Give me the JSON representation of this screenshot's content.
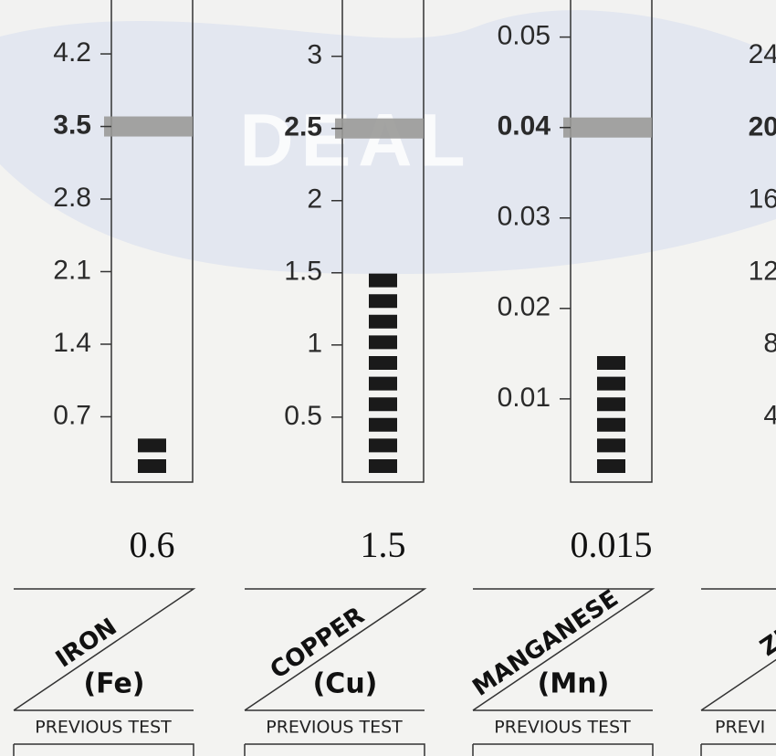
{
  "watermark": "DEAL",
  "chart_data": [
    {
      "type": "gauge",
      "element": "IRON",
      "symbol": "(Fe)",
      "footer": "PREVIOUS TEST",
      "values": [
        0.6
      ],
      "reference": 3.5,
      "color": "#1a1a1a",
      "ylim": [
        0.07,
        4.72
      ],
      "yticks": [
        0.7,
        1.4,
        2.1,
        2.8,
        3.5,
        4.2
      ]
    },
    {
      "type": "gauge",
      "element": "COPPER",
      "symbol": "(Cu)",
      "footer": "PREVIOUS TEST",
      "values": [
        1.5
      ],
      "reference": 2.5,
      "color": "#1a1a1a",
      "ylim": [
        0.05,
        3.39
      ],
      "yticks": [
        0.5,
        1.0,
        1.5,
        2.0,
        2.5,
        3.0
      ]
    },
    {
      "type": "gauge",
      "element": "MANGANESE",
      "symbol": "(Mn)",
      "footer": "PREVIOUS TEST",
      "values": [
        0.015
      ],
      "reference": 0.04,
      "color": "#1a1a1a",
      "ylim": [
        0.0008,
        0.0541
      ],
      "yticks": [
        0.01,
        0.02,
        0.03,
        0.04,
        0.05
      ]
    },
    {
      "type": "gauge",
      "element": "ZI",
      "footer": "PREVI",
      "reference": 20,
      "ylim": [
        0.4,
        27.1
      ],
      "yticks": [
        4,
        8,
        12,
        16,
        20,
        24
      ]
    }
  ]
}
